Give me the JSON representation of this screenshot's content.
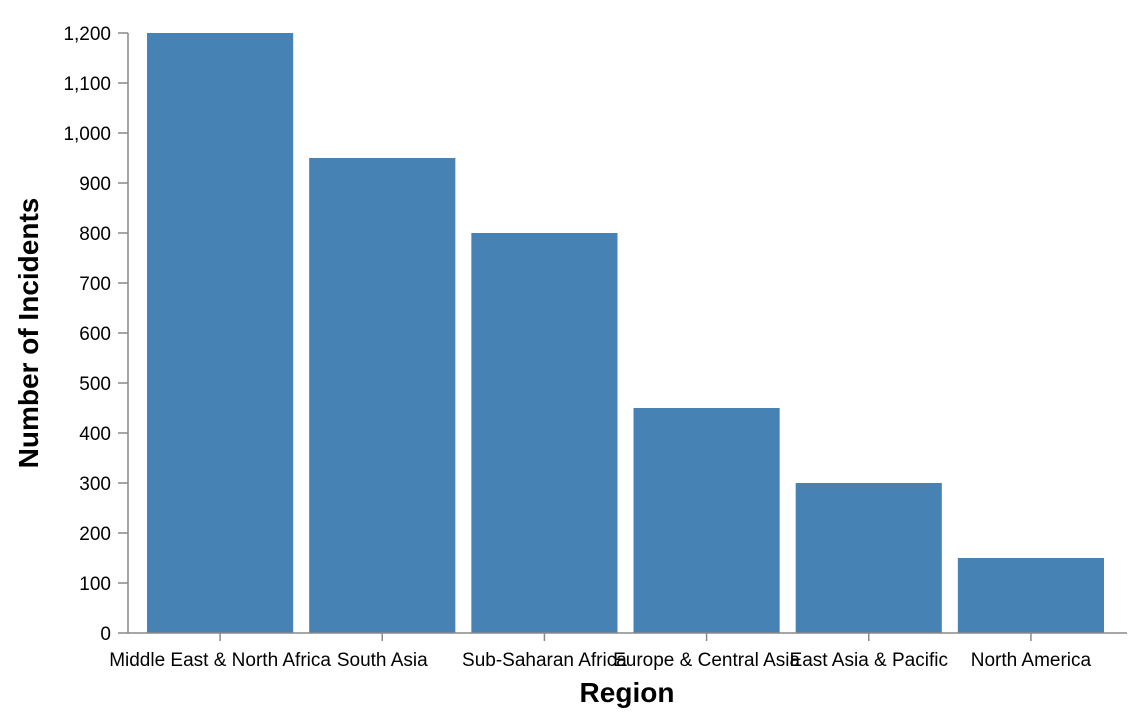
{
  "chart_data": {
    "type": "bar",
    "title": "",
    "xlabel": "Region",
    "ylabel": "Number of Incidents",
    "categories": [
      "Middle East & North Africa",
      "South Asia",
      "Sub-Saharan Africa",
      "Europe & Central Asia",
      "East Asia & Pacific",
      "North America"
    ],
    "values": [
      1200,
      950,
      800,
      450,
      300,
      150
    ],
    "ylim": [
      0,
      1200
    ],
    "yticks": [
      "0",
      "100",
      "200",
      "300",
      "400",
      "500",
      "600",
      "700",
      "800",
      "900",
      "1,000",
      "1,100",
      "1,200"
    ],
    "bar_color": "#4682b4",
    "grid": false,
    "legend": "none"
  }
}
